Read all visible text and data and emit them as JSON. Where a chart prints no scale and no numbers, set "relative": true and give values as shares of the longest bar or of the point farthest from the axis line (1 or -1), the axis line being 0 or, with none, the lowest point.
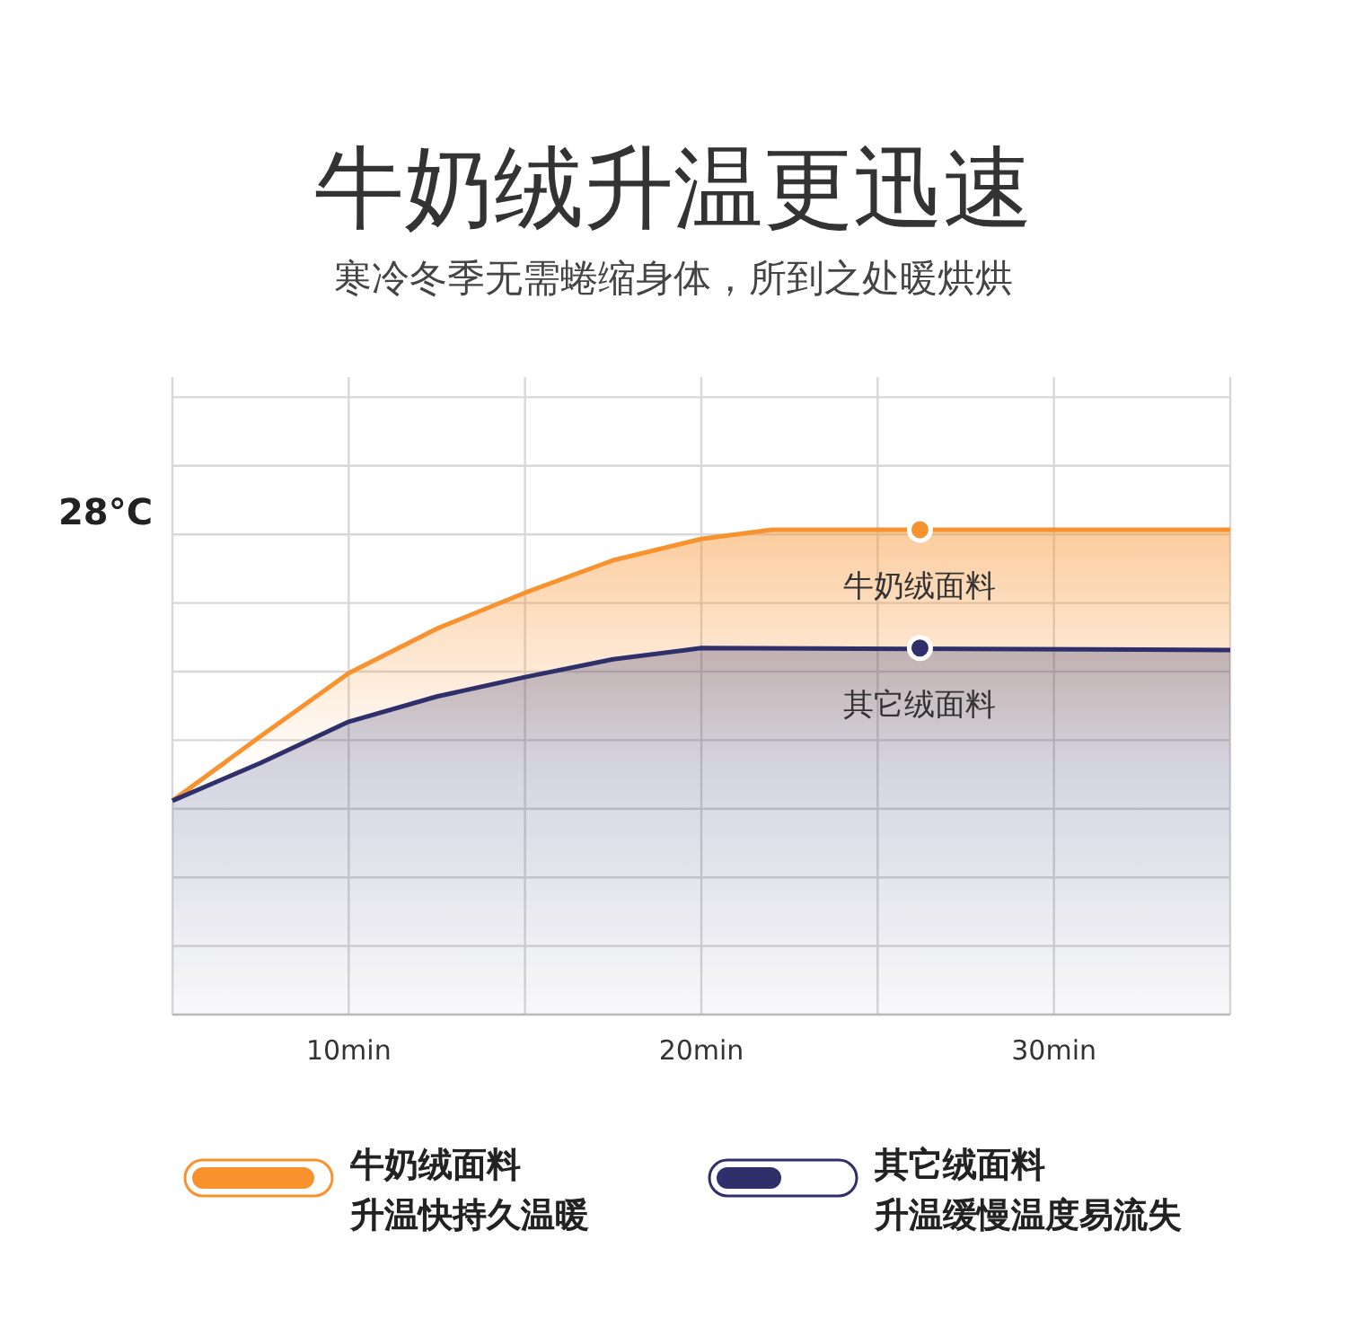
{
  "chart_data": {
    "type": "area",
    "title": "牛奶绒升温更迅速",
    "subtitle": "寒冷冬季无需蜷缩身体，所到之处暖烘烘",
    "relative": true,
    "xlim": [
      5,
      35
    ],
    "xticks": [
      {
        "value": 5,
        "label": null
      },
      {
        "value": 10,
        "label": "10min"
      },
      {
        "value": 15,
        "label": null
      },
      {
        "value": 20,
        "label": "20min"
      },
      {
        "value": 25,
        "label": null
      },
      {
        "value": 30,
        "label": "30min"
      },
      {
        "value": 35,
        "label": null
      }
    ],
    "grid": true,
    "legend": "bottom",
    "series": [
      {
        "name": "牛奶绒面料",
        "color": "#f7922e",
        "x": [
          5,
          7.5,
          10,
          12.5,
          15,
          17.5,
          20,
          22,
          35
        ],
        "values": [
          0.441,
          0.574,
          0.704,
          0.796,
          0.87,
          0.937,
          0.981,
          1,
          1
        ]
      },
      {
        "name": "其它绒面料",
        "color": "#2e2f6b",
        "x": [
          5,
          7.5,
          10,
          12.5,
          15,
          17.5,
          20,
          35
        ],
        "values": [
          0.441,
          0.519,
          0.604,
          0.656,
          0.696,
          0.733,
          0.756,
          0.752
        ]
      }
    ],
    "annotations": [
      "28°C",
      {
        "text": "牛奶绒面料",
        "x": 26.2,
        "y": 1
      },
      {
        "text": "其它绒面料",
        "x": 26.2,
        "y": 0.756
      },
      "升温快持久温暖",
      "升温缓慢温度易流失"
    ]
  }
}
